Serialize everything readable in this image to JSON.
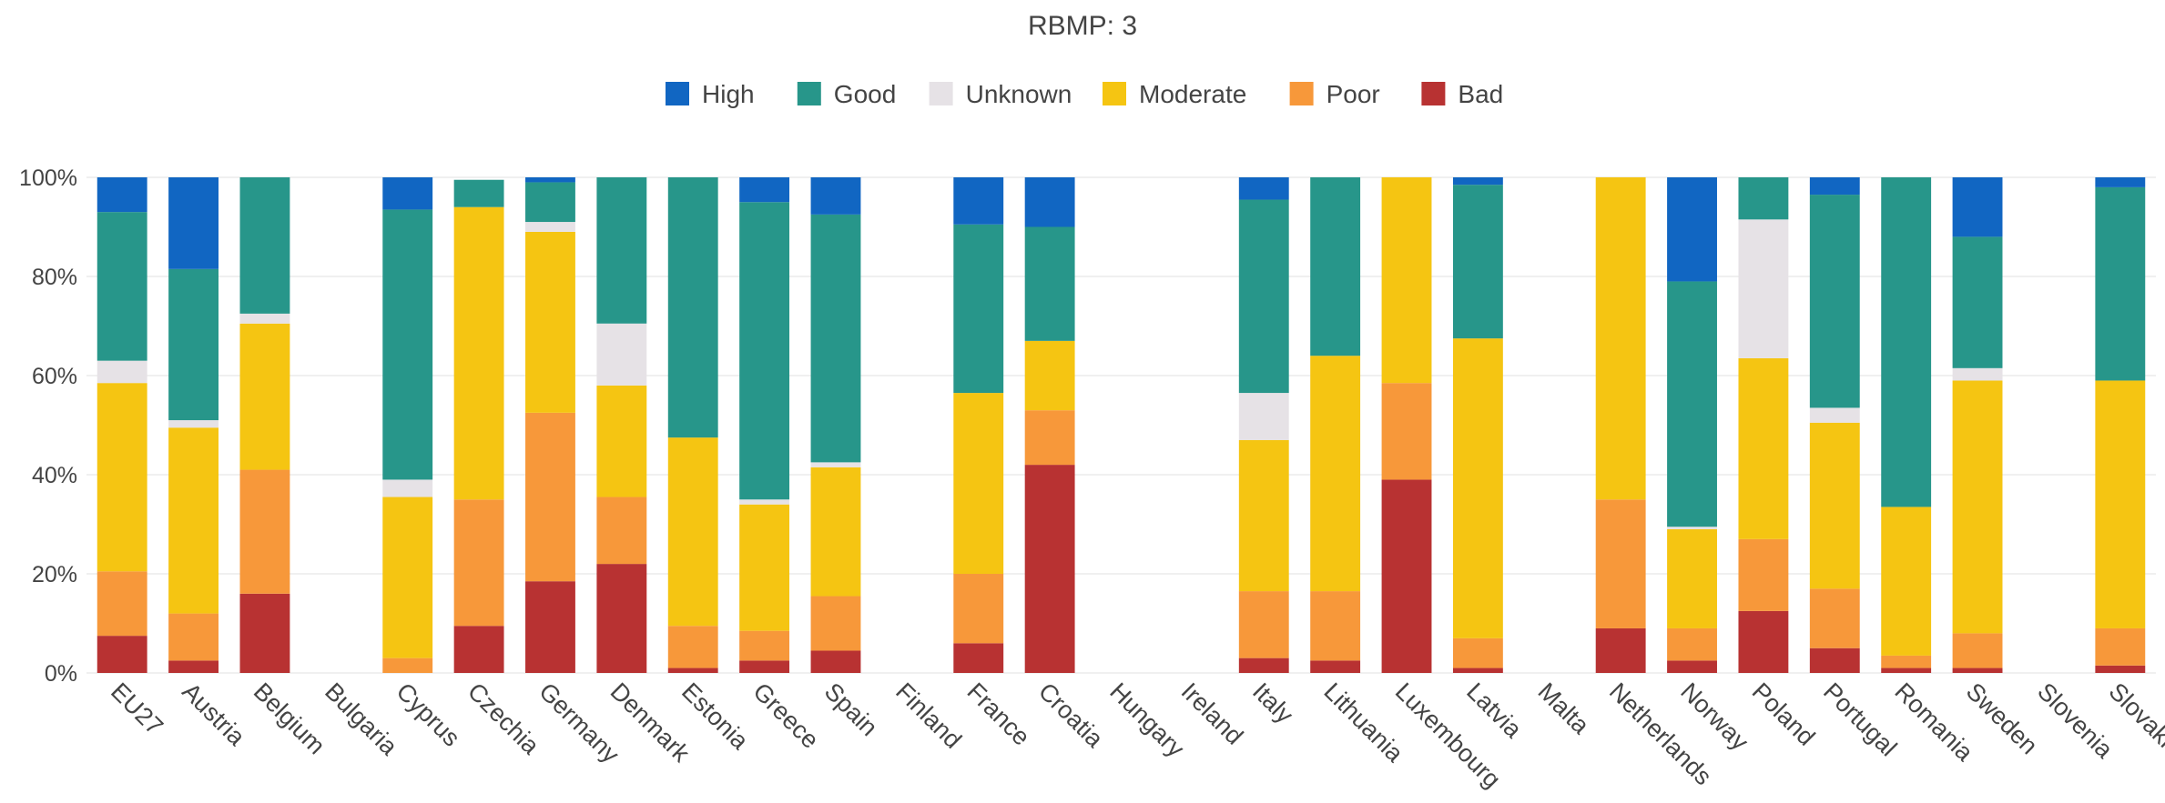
{
  "chart_data": {
    "type": "bar",
    "stacked": true,
    "title": "RBMP: 3",
    "xlabel": "",
    "ylabel": "",
    "ylim": [
      0,
      100
    ],
    "yticks": [
      "0%",
      "20%",
      "40%",
      "60%",
      "80%",
      "100%"
    ],
    "grid": true,
    "legend_position": "top",
    "categories": [
      "EU27",
      "Austria",
      "Belgium",
      "Bulgaria",
      "Cyprus",
      "Czechia",
      "Germany",
      "Denmark",
      "Estonia",
      "Greece",
      "Spain",
      "Finland",
      "France",
      "Croatia",
      "Hungary",
      "Ireland",
      "Italy",
      "Lithuania",
      "Luxembourg",
      "Latvia",
      "Malta",
      "Netherlands",
      "Norway",
      "Poland",
      "Portugal",
      "Romania",
      "Sweden",
      "Slovenia",
      "Slovakia"
    ],
    "series": [
      {
        "name": "Bad",
        "color": "#b83232",
        "values": [
          7.5,
          2.5,
          16,
          0,
          0,
          9.5,
          18.5,
          22,
          1,
          2.5,
          4.5,
          0,
          6,
          42,
          0,
          0,
          3,
          2.5,
          39,
          1,
          0,
          9,
          2.5,
          12.5,
          5,
          1,
          1,
          0,
          1.5
        ]
      },
      {
        "name": "Poor",
        "color": "#f7983a",
        "values": [
          13,
          9.5,
          25,
          0,
          3,
          25.5,
          34,
          13.5,
          8.5,
          6,
          11,
          0,
          14,
          11,
          0,
          0,
          13.5,
          14,
          19.5,
          6,
          0,
          26,
          6.5,
          14.5,
          12,
          2.5,
          7,
          0,
          7.5
        ]
      },
      {
        "name": "Moderate",
        "color": "#f5c512",
        "values": [
          38,
          37.5,
          29.5,
          0,
          32.5,
          59,
          36.5,
          22.5,
          38,
          25.5,
          26,
          0,
          36.5,
          14,
          0,
          0,
          30.5,
          47.5,
          41.5,
          60.5,
          0,
          65,
          20,
          36.5,
          33.5,
          30,
          51,
          0,
          50
        ]
      },
      {
        "name": "Unknown",
        "color": "#e6e2e6",
        "values": [
          4.5,
          1.5,
          2,
          0,
          3.5,
          0,
          2,
          12.5,
          0,
          1,
          1,
          0,
          0,
          0,
          0,
          0,
          9.5,
          0,
          0,
          0,
          0,
          0,
          0.5,
          28,
          3,
          0,
          2.5,
          0,
          0
        ]
      },
      {
        "name": "Good",
        "color": "#27968a",
        "values": [
          30,
          30.5,
          27.5,
          0,
          54.5,
          5.5,
          8,
          29.5,
          52.5,
          60,
          50,
          0,
          34,
          23,
          0,
          0,
          39,
          36,
          0,
          31,
          0,
          0,
          49.5,
          8.5,
          43,
          66.5,
          26.5,
          0,
          39
        ]
      },
      {
        "name": "High",
        "color": "#1166c2",
        "values": [
          7,
          18.5,
          0,
          0,
          6.5,
          0,
          1,
          0,
          0,
          5,
          7.5,
          0,
          9.5,
          10,
          0,
          0,
          4.5,
          0,
          0,
          1.5,
          0,
          0,
          21,
          0,
          3.5,
          0,
          12,
          0,
          2
        ]
      }
    ],
    "legend_order": [
      "High",
      "Good",
      "Unknown",
      "Moderate",
      "Poor",
      "Bad"
    ]
  }
}
